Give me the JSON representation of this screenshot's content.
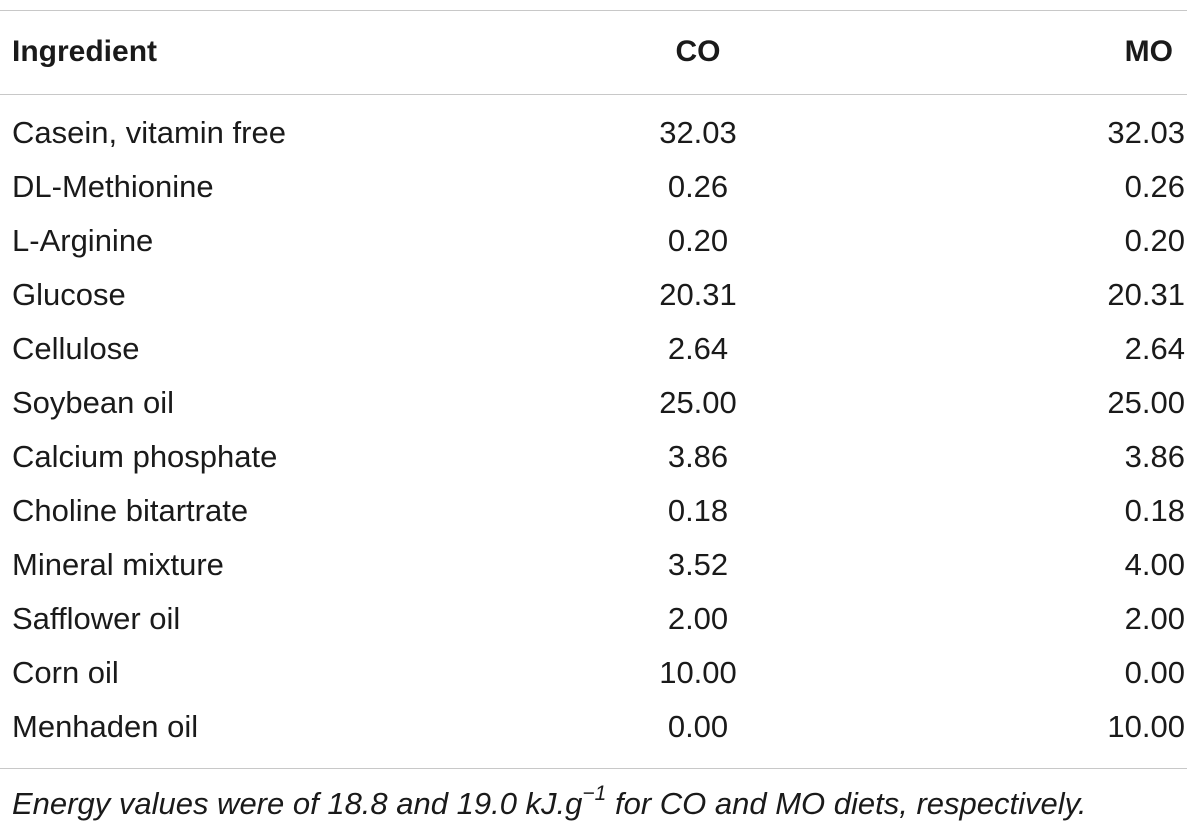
{
  "table": {
    "headers": [
      "Ingredient",
      "CO",
      "MO"
    ],
    "rows": [
      {
        "ingredient": "Casein, vitamin free",
        "co": "32.03",
        "mo": "32.03"
      },
      {
        "ingredient": "DL-Methionine",
        "co": "0.26",
        "mo": "0.26"
      },
      {
        "ingredient": "L-Arginine",
        "co": "0.20",
        "mo": "0.20"
      },
      {
        "ingredient": "Glucose",
        "co": "20.31",
        "mo": "20.31"
      },
      {
        "ingredient": "Cellulose",
        "co": "2.64",
        "mo": "2.64"
      },
      {
        "ingredient": "Soybean oil",
        "co": "25.00",
        "mo": "25.00"
      },
      {
        "ingredient": "Calcium phosphate",
        "co": "3.86",
        "mo": "3.86"
      },
      {
        "ingredient": "Choline bitartrate",
        "co": "0.18",
        "mo": "0.18"
      },
      {
        "ingredient": "Mineral mixture",
        "co": "3.52",
        "mo": "4.00"
      },
      {
        "ingredient": "Safflower oil",
        "co": "2.00",
        "mo": "2.00"
      },
      {
        "ingredient": "Corn oil",
        "co": "10.00",
        "mo": "0.00"
      },
      {
        "ingredient": "Menhaden oil",
        "co": "0.00",
        "mo": "10.00"
      }
    ]
  },
  "footnote": {
    "before": "Energy values were of 18.8 and 19.0 kJ.g",
    "superscript": "−1",
    "after": " for CO and MO diets, respectively."
  }
}
